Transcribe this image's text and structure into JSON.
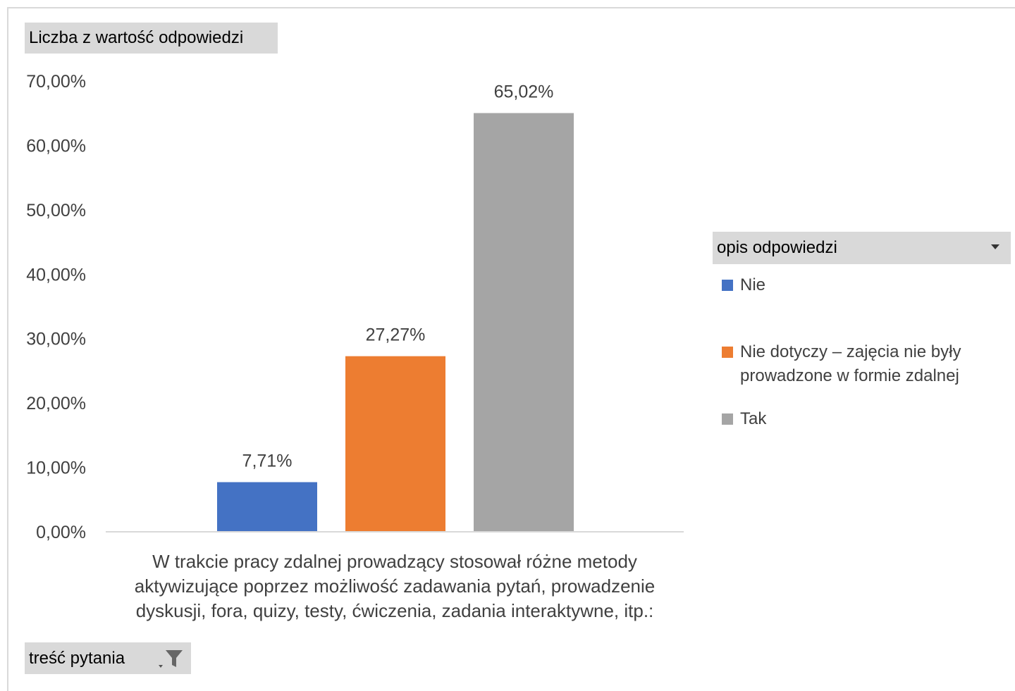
{
  "chart_data": {
    "type": "bar",
    "categories": [
      "W trakcie pracy zdalnej prowadzący stosował różne metody aktywizujące poprzez możliwość zadawania pytań, prowadzenie dyskusji, fora, quizy, testy, ćwiczenia, zadania interaktywne, itp.:"
    ],
    "series": [
      {
        "name": "Nie",
        "values": [
          7.71
        ],
        "label": "7,71%",
        "color": "#4472c4"
      },
      {
        "name": "Nie dotyczy – zajęcia nie były prowadzone w formie zdalnej",
        "values": [
          27.27
        ],
        "label": "27,27%",
        "color": "#ed7d31"
      },
      {
        "name": "Tak",
        "values": [
          65.02
        ],
        "label": "65,02%",
        "color": "#a5a5a5"
      }
    ],
    "ylim": [
      0,
      70
    ],
    "yticks": [
      "0,00%",
      "10,00%",
      "20,00%",
      "30,00%",
      "40,00%",
      "50,00%",
      "60,00%",
      "70,00%"
    ],
    "grid": false,
    "legend_placement": "right"
  },
  "fields": {
    "value_field": "Liczba z wartość odpowiedzi",
    "legend_field": "opis odpowiedzi",
    "filter_field": "treść pytania"
  },
  "icons": {
    "legend_dropdown": "chevron-down-icon",
    "filter": "filter-icon"
  }
}
